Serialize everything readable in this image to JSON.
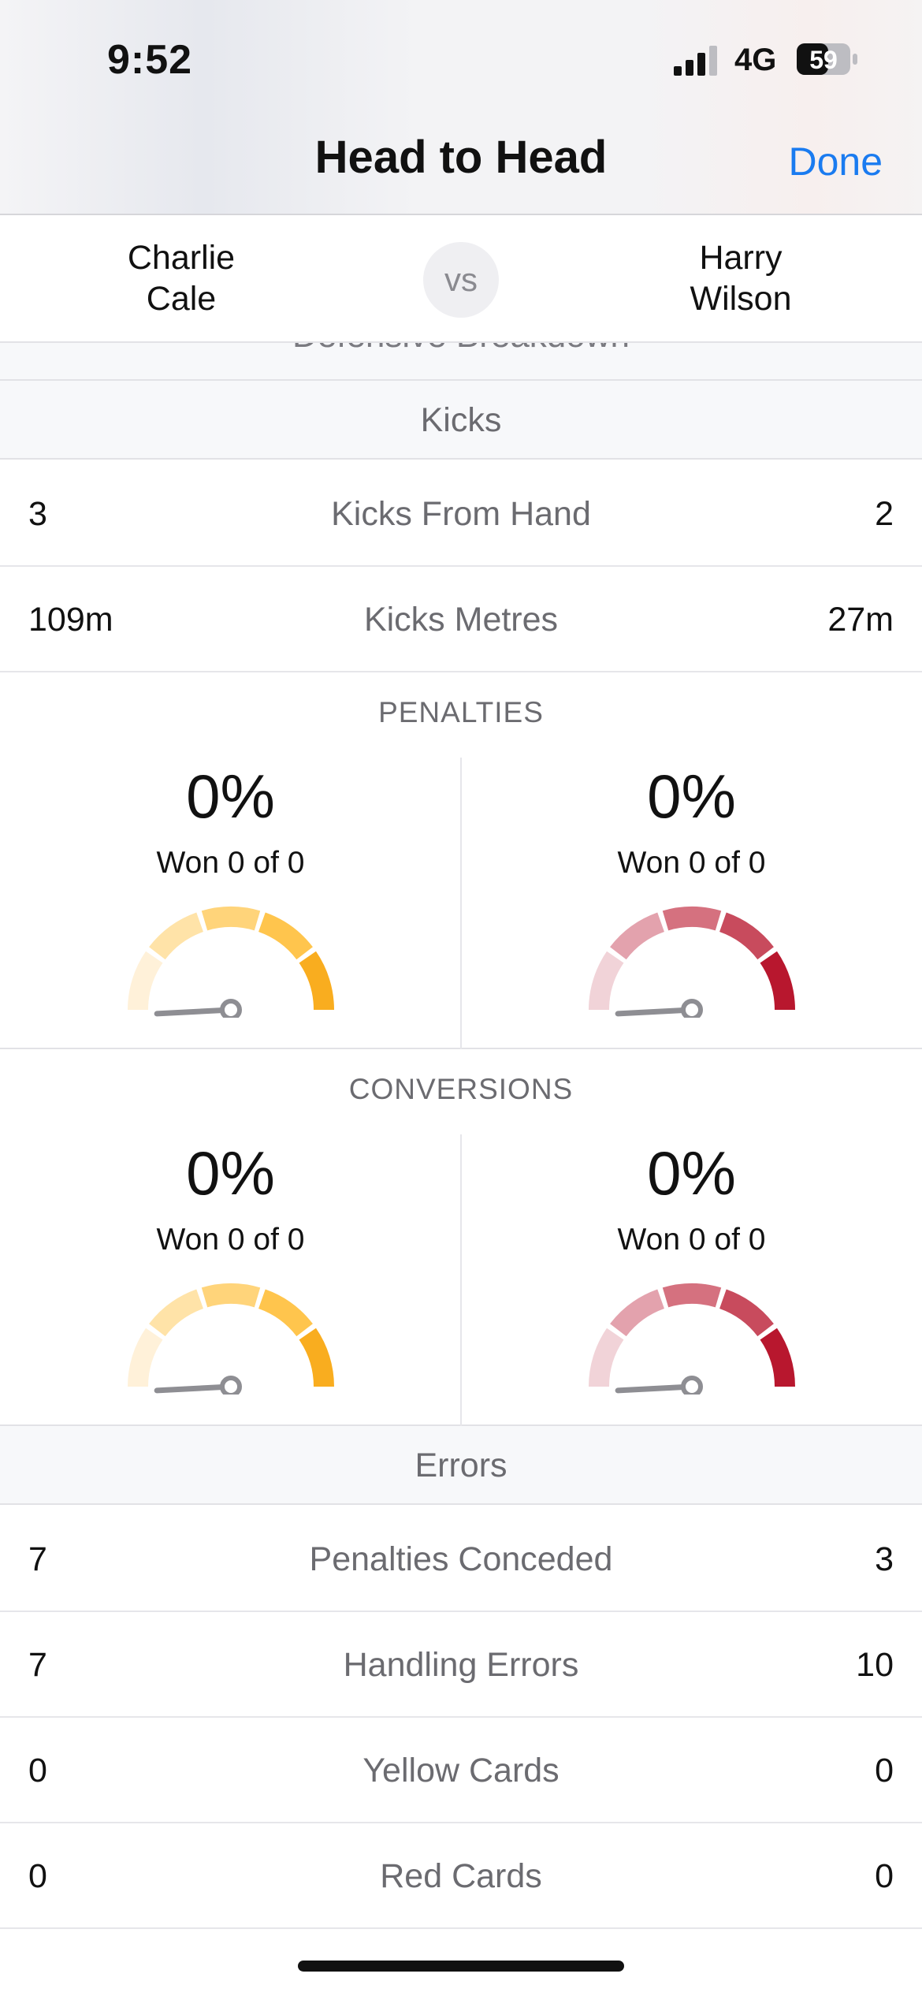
{
  "status_bar": {
    "time": "9:52",
    "network": "4G",
    "battery": "59"
  },
  "nav": {
    "title": "Head to Head",
    "done_label": "Done"
  },
  "players": {
    "left": "Charlie\nCale",
    "vs": "vs",
    "right": "Harry\nWilson"
  },
  "partial_section": "Defensive Breakdown",
  "kicks": {
    "title": "Kicks",
    "rows": [
      {
        "left": "3",
        "label": "Kicks From Hand",
        "right": "2"
      },
      {
        "left": "109m",
        "label": "Kicks Metres",
        "right": "27m"
      }
    ]
  },
  "penalties": {
    "title": "PENALTIES",
    "left": {
      "pct": "0%",
      "won": "Won 0 of 0",
      "value": 0
    },
    "right": {
      "pct": "0%",
      "won": "Won 0 of 0",
      "value": 0
    }
  },
  "conversions": {
    "title": "CONVERSIONS",
    "left": {
      "pct": "0%",
      "won": "Won 0 of 0",
      "value": 0
    },
    "right": {
      "pct": "0%",
      "won": "Won 0 of 0",
      "value": 0
    }
  },
  "errors": {
    "title": "Errors",
    "rows": [
      {
        "left": "7",
        "label": "Penalties Conceded",
        "right": "3"
      },
      {
        "left": "7",
        "label": "Handling Errors",
        "right": "10"
      },
      {
        "left": "0",
        "label": "Yellow Cards",
        "right": "0"
      },
      {
        "left": "0",
        "label": "Red Cards",
        "right": "0"
      }
    ]
  },
  "colors": {
    "accent_blue": "#1a7bf0",
    "gauge_left": [
      "#fff1d9",
      "#ffe3a8",
      "#ffd47a",
      "#ffc54d",
      "#f9ad1f"
    ],
    "gauge_right": [
      "#f1d3d8",
      "#e3a2ad",
      "#d5717f",
      "#c84b5d",
      "#b8172e"
    ],
    "needle": "#8e8e93"
  },
  "icons": {
    "signal": "cellular-signal-icon",
    "battery": "battery-icon"
  }
}
